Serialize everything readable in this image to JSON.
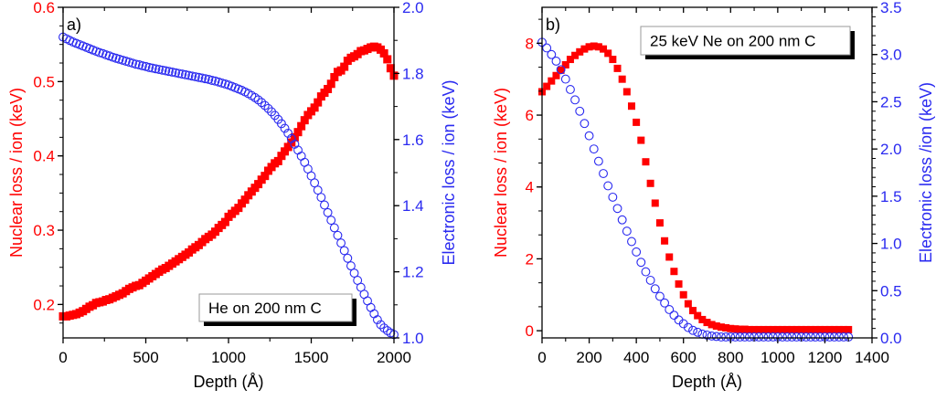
{
  "colors": {
    "nuclear": "#ff0000",
    "electronic": "#2a2af0",
    "axis": "#000000"
  },
  "chart_data": [
    {
      "type": "scatter",
      "panel_label": "a)",
      "annotation": "He on 200 nm C",
      "xlabel": "Depth (Å)",
      "ylabel_left": "Nuclear loss / ion (keV)",
      "ylabel_right": "Electronic loss / ion (keV)",
      "xlim": [
        0,
        2000
      ],
      "ylim_left": [
        0.155,
        0.6
      ],
      "ylim_right": [
        1.0,
        2.0
      ],
      "xticks": [
        "0",
        "500",
        "1000",
        "1500",
        "2000"
      ],
      "yticks_left": [
        "0.2",
        "0.3",
        "0.4",
        "0.5",
        "0.6"
      ],
      "yticks_right": [
        "1.0",
        "1.2",
        "1.4",
        "1.6",
        "1.8",
        "2.0"
      ],
      "grid": false,
      "series": [
        {
          "name": "Nuclear loss",
          "axis": "left",
          "marker": "filled-square",
          "x": [
            0,
            20,
            40,
            60,
            80,
            100,
            120,
            140,
            160,
            180,
            200,
            220,
            240,
            260,
            280,
            300,
            320,
            340,
            360,
            380,
            400,
            420,
            440,
            460,
            480,
            500,
            520,
            540,
            560,
            580,
            600,
            620,
            640,
            660,
            680,
            700,
            720,
            740,
            760,
            780,
            800,
            820,
            840,
            860,
            880,
            900,
            920,
            940,
            960,
            980,
            1000,
            1020,
            1040,
            1060,
            1080,
            1100,
            1120,
            1140,
            1160,
            1180,
            1200,
            1220,
            1240,
            1260,
            1280,
            1300,
            1320,
            1340,
            1360,
            1380,
            1400,
            1420,
            1440,
            1460,
            1480,
            1500,
            1520,
            1540,
            1560,
            1580,
            1600,
            1620,
            1640,
            1660,
            1680,
            1700,
            1720,
            1740,
            1760,
            1780,
            1800,
            1820,
            1840,
            1860,
            1880,
            1900,
            1920,
            1940,
            1960,
            1980,
            2000
          ],
          "values": [
            0.184,
            0.184,
            0.185,
            0.186,
            0.187,
            0.189,
            0.191,
            0.194,
            0.197,
            0.199,
            0.202,
            0.203,
            0.204,
            0.206,
            0.207,
            0.209,
            0.211,
            0.213,
            0.215,
            0.218,
            0.221,
            0.223,
            0.225,
            0.226,
            0.229,
            0.232,
            0.235,
            0.238,
            0.241,
            0.244,
            0.247,
            0.249,
            0.252,
            0.255,
            0.258,
            0.261,
            0.264,
            0.267,
            0.27,
            0.274,
            0.277,
            0.28,
            0.284,
            0.288,
            0.291,
            0.294,
            0.298,
            0.303,
            0.307,
            0.311,
            0.318,
            0.322,
            0.326,
            0.33,
            0.336,
            0.341,
            0.347,
            0.352,
            0.357,
            0.362,
            0.368,
            0.373,
            0.38,
            0.385,
            0.39,
            0.393,
            0.4,
            0.406,
            0.412,
            0.418,
            0.425,
            0.432,
            0.44,
            0.448,
            0.455,
            0.46,
            0.465,
            0.472,
            0.48,
            0.485,
            0.49,
            0.497,
            0.506,
            0.513,
            0.515,
            0.52,
            0.528,
            0.532,
            0.534,
            0.537,
            0.541,
            0.542,
            0.544,
            0.546,
            0.547,
            0.546,
            0.543,
            0.538,
            0.53,
            0.518,
            0.508
          ]
        },
        {
          "name": "Electronic loss",
          "axis": "right",
          "marker": "open-circle",
          "x": [
            0,
            20,
            40,
            60,
            80,
            100,
            120,
            140,
            160,
            180,
            200,
            220,
            240,
            260,
            280,
            300,
            320,
            340,
            360,
            380,
            400,
            420,
            440,
            460,
            480,
            500,
            520,
            540,
            560,
            580,
            600,
            620,
            640,
            660,
            680,
            700,
            720,
            740,
            760,
            780,
            800,
            820,
            840,
            860,
            880,
            900,
            920,
            940,
            960,
            980,
            1000,
            1020,
            1040,
            1060,
            1080,
            1100,
            1120,
            1140,
            1160,
            1180,
            1200,
            1220,
            1240,
            1260,
            1280,
            1300,
            1320,
            1340,
            1360,
            1380,
            1400,
            1420,
            1440,
            1460,
            1480,
            1500,
            1520,
            1540,
            1560,
            1580,
            1600,
            1620,
            1640,
            1660,
            1680,
            1700,
            1720,
            1740,
            1760,
            1780,
            1800,
            1820,
            1840,
            1860,
            1880,
            1900,
            1920,
            1940,
            1960,
            1980,
            2000
          ],
          "values": [
            1.91,
            1.905,
            1.9,
            1.895,
            1.891,
            1.887,
            1.883,
            1.879,
            1.875,
            1.871,
            1.867,
            1.863,
            1.86,
            1.856,
            1.853,
            1.849,
            1.846,
            1.843,
            1.84,
            1.837,
            1.834,
            1.831,
            1.828,
            1.826,
            1.823,
            1.821,
            1.818,
            1.816,
            1.814,
            1.812,
            1.81,
            1.808,
            1.806,
            1.804,
            1.802,
            1.8,
            1.798,
            1.796,
            1.794,
            1.792,
            1.79,
            1.788,
            1.786,
            1.784,
            1.782,
            1.779,
            1.777,
            1.774,
            1.771,
            1.768,
            1.765,
            1.761,
            1.757,
            1.753,
            1.749,
            1.744,
            1.739,
            1.733,
            1.727,
            1.72,
            1.712,
            1.703,
            1.694,
            1.684,
            1.673,
            1.661,
            1.648,
            1.634,
            1.619,
            1.603,
            1.586,
            1.568,
            1.55,
            1.531,
            1.511,
            1.49,
            1.469,
            1.447,
            1.425,
            1.402,
            1.379,
            1.356,
            1.333,
            1.31,
            1.287,
            1.264,
            1.241,
            1.218,
            1.196,
            1.174,
            1.153,
            1.132,
            1.112,
            1.092,
            1.073,
            1.055,
            1.04,
            1.03,
            1.022,
            1.015,
            1.01
          ]
        }
      ]
    },
    {
      "type": "scatter",
      "panel_label": "b)",
      "annotation": "25 keV Ne on 200 nm C",
      "xlabel": "Depth (Å)",
      "ylabel_left": "Nuclear loss / ion (keV)",
      "ylabel_right": "Electronic loss /ion (keV)",
      "xlim": [
        0,
        1400
      ],
      "ylim_left": [
        -0.2,
        9.0
      ],
      "ylim_right": [
        0.0,
        3.5
      ],
      "xticks": [
        "0",
        "200",
        "400",
        "600",
        "800",
        "1000",
        "1200",
        "1400"
      ],
      "yticks_left": [
        "0",
        "2",
        "4",
        "6",
        "8"
      ],
      "yticks_right": [
        "0.0",
        "0.5",
        "1.0",
        "1.5",
        "2.0",
        "2.5",
        "3.0",
        "3.5"
      ],
      "grid": false,
      "series": [
        {
          "name": "Nuclear loss",
          "axis": "left",
          "marker": "filled-square",
          "x": [
            0,
            20,
            40,
            60,
            80,
            100,
            120,
            140,
            160,
            180,
            200,
            220,
            240,
            260,
            280,
            300,
            320,
            340,
            360,
            380,
            400,
            420,
            440,
            460,
            480,
            500,
            520,
            540,
            560,
            580,
            600,
            620,
            640,
            660,
            680,
            700,
            720,
            740,
            760,
            780,
            800,
            820,
            840,
            860,
            880,
            900,
            920,
            940,
            960,
            980,
            1000,
            1020,
            1040,
            1060,
            1080,
            1100,
            1120,
            1140,
            1160,
            1180,
            1200,
            1220,
            1240,
            1260,
            1280,
            1300
          ],
          "values": [
            6.65,
            6.8,
            6.95,
            7.1,
            7.25,
            7.4,
            7.55,
            7.66,
            7.76,
            7.84,
            7.9,
            7.92,
            7.9,
            7.84,
            7.72,
            7.55,
            7.3,
            7.0,
            6.65,
            6.25,
            5.8,
            5.3,
            4.7,
            4.1,
            3.55,
            3.0,
            2.5,
            2.05,
            1.65,
            1.3,
            1.0,
            0.75,
            0.56,
            0.42,
            0.31,
            0.23,
            0.17,
            0.13,
            0.1,
            0.08,
            0.06,
            0.05,
            0.04,
            0.04,
            0.03,
            0.03,
            0.03,
            0.03,
            0.03,
            0.03,
            0.03,
            0.03,
            0.03,
            0.03,
            0.03,
            0.03,
            0.03,
            0.03,
            0.03,
            0.03,
            0.03,
            0.03,
            0.03,
            0.03,
            0.03,
            0.03
          ]
        },
        {
          "name": "Electronic loss",
          "axis": "right",
          "marker": "open-circle",
          "x": [
            0,
            20,
            40,
            60,
            80,
            100,
            120,
            140,
            160,
            180,
            200,
            220,
            240,
            260,
            280,
            300,
            320,
            340,
            360,
            380,
            400,
            420,
            440,
            460,
            480,
            500,
            520,
            540,
            560,
            580,
            600,
            620,
            640,
            660,
            680,
            700,
            720,
            740,
            760,
            780,
            800,
            820,
            840,
            860,
            880,
            900,
            920,
            940,
            960,
            980,
            1000,
            1020,
            1040,
            1060,
            1080,
            1100,
            1120,
            1140,
            1160,
            1180,
            1200,
            1220,
            1240,
            1260,
            1280,
            1300
          ],
          "values": [
            3.13,
            3.07,
            3.0,
            2.93,
            2.84,
            2.74,
            2.63,
            2.52,
            2.4,
            2.27,
            2.14,
            2.0,
            1.87,
            1.74,
            1.61,
            1.49,
            1.37,
            1.25,
            1.13,
            1.02,
            0.91,
            0.8,
            0.7,
            0.61,
            0.52,
            0.44,
            0.37,
            0.3,
            0.24,
            0.19,
            0.15,
            0.11,
            0.08,
            0.06,
            0.04,
            0.03,
            0.02,
            0.015,
            0.01,
            0.01,
            0.01,
            0.01,
            0.01,
            0.01,
            0.01,
            0.01,
            0.01,
            0.01,
            0.01,
            0.01,
            0.01,
            0.01,
            0.01,
            0.01,
            0.01,
            0.01,
            0.01,
            0.01,
            0.01,
            0.01,
            0.01,
            0.01,
            0.01,
            0.01,
            0.01,
            0.01
          ]
        }
      ]
    }
  ]
}
